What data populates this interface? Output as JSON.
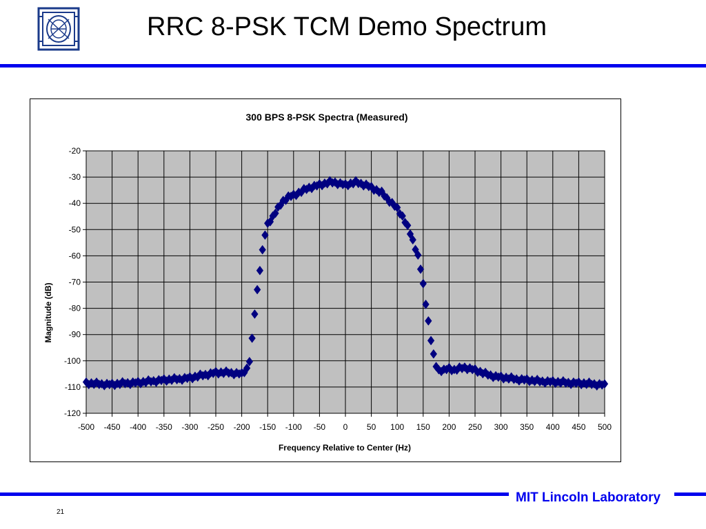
{
  "slide": {
    "title": "RRC 8-PSK TCM Demo Spectrum",
    "footer_lab": "MIT Lincoln Laboratory",
    "page_number": "21",
    "accent_color": "#0000ee"
  },
  "logo": {
    "icon": "mit-ll-logo-icon"
  },
  "chart_data": {
    "type": "scatter",
    "title": "300 BPS 8-PSK Spectra (Measured)",
    "xlabel": "Frequency Relative to Center (Hz)",
    "ylabel": "Magnitude (dB)",
    "xlim": [
      -500,
      500
    ],
    "ylim": [
      -120,
      -20
    ],
    "xticks": [
      -500,
      -450,
      -400,
      -350,
      -300,
      -250,
      -200,
      -150,
      -100,
      -50,
      0,
      50,
      100,
      150,
      200,
      250,
      300,
      350,
      400,
      450,
      500
    ],
    "yticks": [
      -20,
      -30,
      -40,
      -50,
      -60,
      -70,
      -80,
      -90,
      -100,
      -110,
      -120
    ],
    "grid": true,
    "plot_background": "#c0c0c0",
    "marker": "diamond",
    "series": [
      {
        "name": "",
        "color": "#000080",
        "x": [
          -500,
          -475,
          -450,
          -425,
          -400,
          -375,
          -350,
          -325,
          -300,
          -275,
          -250,
          -225,
          -200,
          -190,
          -185,
          -180,
          -175,
          -170,
          -165,
          -160,
          -155,
          -150,
          -140,
          -130,
          -120,
          -110,
          -100,
          -90,
          -80,
          -70,
          -60,
          -50,
          -40,
          -30,
          -20,
          -10,
          0,
          10,
          20,
          30,
          40,
          50,
          60,
          70,
          80,
          90,
          100,
          110,
          120,
          130,
          140,
          145,
          150,
          155,
          160,
          165,
          170,
          175,
          180,
          190,
          200,
          210,
          220,
          230,
          250,
          270,
          290,
          310,
          330,
          350,
          375,
          400,
          425,
          450,
          475,
          500
        ],
        "y": [
          -108.5,
          -108.8,
          -109,
          -108.5,
          -108.3,
          -107.8,
          -107.3,
          -107,
          -106.5,
          -105.5,
          -104.5,
          -104.5,
          -105,
          -103,
          -100,
          -92,
          -82,
          -73,
          -65,
          -58,
          -52,
          -48,
          -45,
          -42,
          -39,
          -37.5,
          -37,
          -36,
          -35,
          -34,
          -33.5,
          -33,
          -32.5,
          -32,
          -32,
          -32.5,
          -33,
          -32.5,
          -32,
          -32.5,
          -33,
          -34,
          -35,
          -36,
          -38,
          -40,
          -42,
          -45,
          -49,
          -54,
          -60,
          -65,
          -71,
          -78,
          -85,
          -92,
          -98,
          -102,
          -103.5,
          -103.5,
          -103,
          -103.5,
          -103,
          -102.5,
          -103.5,
          -105,
          -106,
          -106.5,
          -107,
          -107.3,
          -107.8,
          -108,
          -108.3,
          -108.5,
          -108.8,
          -109.2
        ]
      }
    ]
  }
}
